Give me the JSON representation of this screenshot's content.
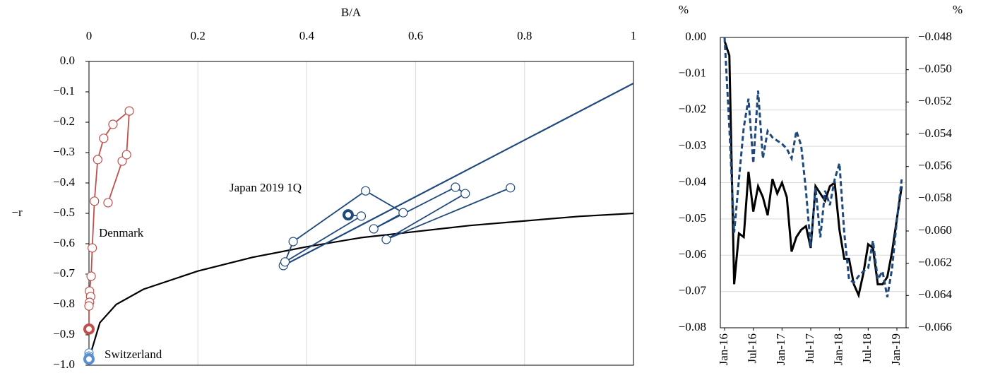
{
  "chart_data": [
    {
      "type": "scatter",
      "x_label": "B/A",
      "y_label": "−r",
      "xlim": [
        0,
        1
      ],
      "ylim": [
        -1,
        0
      ],
      "xticks": [
        0,
        0.2,
        0.4,
        0.6,
        0.8,
        1
      ],
      "yticks": [
        {
          "value": 0,
          "label": "0.0"
        },
        {
          "value": -0.1,
          "label": "−0.1"
        },
        {
          "value": -0.2,
          "label": "−0.2"
        },
        {
          "value": -0.3,
          "label": "−0.3"
        },
        {
          "value": -0.4,
          "label": "−0.4"
        },
        {
          "value": -0.5,
          "label": "−0.5"
        },
        {
          "value": -0.6,
          "label": "−0.6"
        },
        {
          "value": -0.7,
          "label": "−0.7"
        },
        {
          "value": -0.8,
          "label": "−0.8"
        },
        {
          "value": -0.9,
          "label": "−0.9"
        },
        {
          "value": -1,
          "label": "−1.0"
        }
      ],
      "grid": true,
      "series": [
        {
          "name": "Denmark",
          "color": "#c0504d",
          "markers": true,
          "x": [
            0.035,
            0.061,
            0.069,
            0.074,
            0.044,
            0.027,
            0.016,
            0.01,
            0.006,
            0.004,
            0.001,
            0.003,
            0.001,
            0,
            0
          ],
          "values": [
            -0.465,
            -0.328,
            -0.307,
            -0.163,
            -0.207,
            -0.253,
            -0.323,
            -0.46,
            -0.614,
            -0.707,
            -0.756,
            -0.774,
            -0.793,
            -0.805,
            -0.881
          ]
        },
        {
          "name": "Switzerland",
          "color": "#5b8fd0",
          "markers": true,
          "x": [
            0,
            0,
            0,
            0
          ],
          "values": [
            -0.96,
            -0.97,
            -0.975,
            -0.98
          ]
        },
        {
          "name": "Japan 2019 1Q",
          "color": "#1f497d",
          "markers": true,
          "x": [
            0.774,
            0.546,
            0.691,
            0.673,
            0.523,
            0.577,
            0.508,
            0.375,
            0.357,
            0.36,
            0.5,
            0.476
          ],
          "values": [
            -0.416,
            -0.586,
            -0.435,
            -0.414,
            -0.551,
            -0.498,
            -0.426,
            -0.593,
            -0.672,
            -0.66,
            -0.509,
            -0.505
          ]
        },
        {
          "color": "#1f497d",
          "markers": false,
          "x": [
            0.357,
            1
          ],
          "values": [
            -0.672,
            -0.072
          ]
        },
        {
          "color": "#000000",
          "markers": false,
          "x": [
            0,
            0.005,
            0.02,
            0.05,
            0.1,
            0.2,
            0.3,
            0.4,
            0.5,
            0.6,
            0.7,
            0.8,
            0.9,
            1
          ],
          "values": [
            -0.96,
            -0.95,
            -0.86,
            -0.8,
            -0.75,
            -0.69,
            -0.645,
            -0.61,
            -0.58,
            -0.56,
            -0.54,
            -0.525,
            -0.51,
            -0.5
          ]
        }
      ]
    },
    {
      "type": "line",
      "y_label": "%",
      "y2_label": "%",
      "categories": [
        "Jan-16",
        null,
        null,
        null,
        null,
        null,
        "Jul-16",
        null,
        null,
        null,
        null,
        null,
        "Jan-17",
        null,
        null,
        null,
        null,
        null,
        "Jul-17",
        null,
        null,
        null,
        null,
        null,
        "Jan-18",
        null,
        null,
        null,
        null,
        null,
        "Jul-18",
        null,
        null,
        null,
        null,
        null,
        "Jan-19",
        null
      ],
      "ylim": [
        -0.08,
        0
      ],
      "yticks": [
        {
          "value": 0,
          "label": "0.00"
        },
        {
          "value": -0.01,
          "label": "−0.01"
        },
        {
          "value": -0.02,
          "label": "−0.02"
        },
        {
          "value": -0.03,
          "label": "−0.03"
        },
        {
          "value": -0.04,
          "label": "−0.04"
        },
        {
          "value": -0.05,
          "label": "−0.05"
        },
        {
          "value": -0.06,
          "label": "−0.06"
        },
        {
          "value": -0.07,
          "label": "−0.07"
        },
        {
          "value": -0.08,
          "label": "−0.08"
        }
      ],
      "y2lim": [
        -0.066,
        -0.048
      ],
      "y2ticks": [
        {
          "value": -0.048,
          "label": "−0.048"
        },
        {
          "value": -0.05,
          "label": "−0.050"
        },
        {
          "value": -0.052,
          "label": "−0.052"
        },
        {
          "value": -0.054,
          "label": "−0.054"
        },
        {
          "value": -0.056,
          "label": "−0.056"
        },
        {
          "value": -0.058,
          "label": "−0.058"
        },
        {
          "value": -0.06,
          "label": "−0.060"
        },
        {
          "value": -0.062,
          "label": "−0.062"
        },
        {
          "value": -0.064,
          "label": "−0.064"
        },
        {
          "value": -0.066,
          "label": "−0.066"
        }
      ],
      "grid": true,
      "series": [
        {
          "color": "#000000",
          "dashed": false,
          "values": [
            -0.001,
            -0.005,
            -0.068,
            -0.054,
            -0.055,
            -0.037,
            -0.048,
            -0.041,
            -0.044,
            -0.049,
            -0.039,
            -0.043,
            -0.04,
            -0.044,
            -0.059,
            -0.055,
            -0.053,
            -0.052,
            -0.058,
            -0.041,
            -0.043,
            -0.045,
            -0.041,
            -0.04,
            -0.053,
            -0.061,
            -0.061,
            -0.068,
            -0.071,
            -0.065,
            -0.057,
            -0.058,
            -0.068,
            -0.068,
            -0.066,
            -0.059,
            -0.05,
            -0.041
          ]
        },
        {
          "color": "#1f497d",
          "dashed": true,
          "axis": "y2",
          "values": [
            -0.048,
            -0.0536,
            -0.0601,
            -0.0568,
            -0.0536,
            -0.0518,
            -0.0558,
            -0.0513,
            -0.0555,
            -0.0538,
            -0.0542,
            -0.0544,
            -0.0546,
            -0.0549,
            -0.0555,
            -0.0538,
            -0.0547,
            -0.0575,
            -0.061,
            -0.0573,
            -0.0604,
            -0.0575,
            -0.0584,
            -0.0568,
            -0.0558,
            -0.0601,
            -0.063,
            -0.0632,
            -0.0628,
            -0.0625,
            -0.0623,
            -0.0606,
            -0.063,
            -0.0625,
            -0.0641,
            -0.0623,
            -0.0593,
            -0.0568
          ]
        }
      ]
    }
  ]
}
